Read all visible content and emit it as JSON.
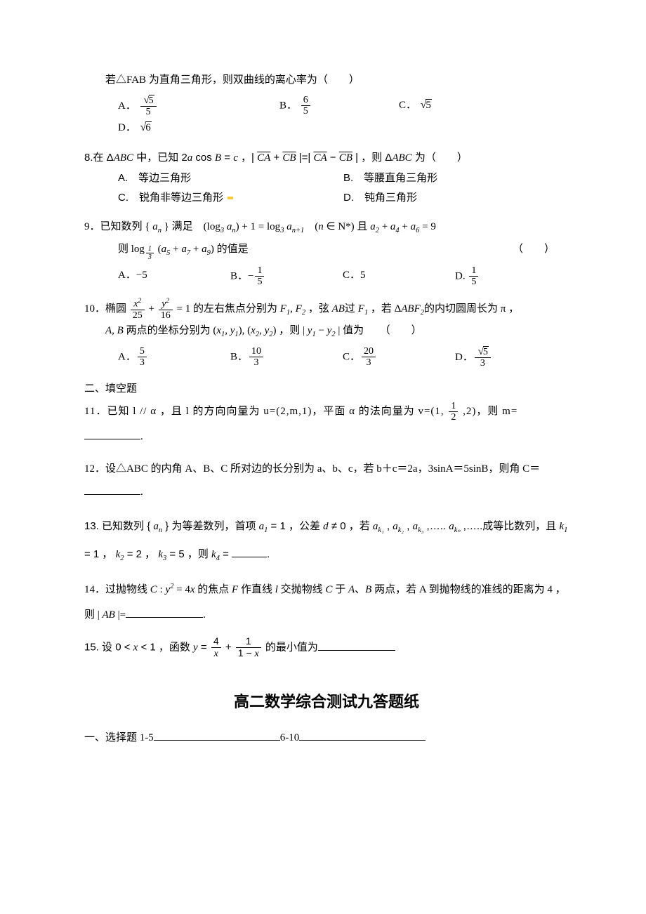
{
  "q7": {
    "stem_indent": "若△FAB 为直角三角形，则双曲线的离心率为（　　）",
    "opts": {
      "A_label": "A．",
      "A_num": "√5",
      "A_num_raw_num": "5",
      "A_is_sqrt_over": true,
      "A_den": "5",
      "B_label": "B．",
      "B_num": "6",
      "B_den": "5",
      "C_label": "C．",
      "C_val_sqrt": "5",
      "D_label": "D．",
      "D_val_sqrt": "6"
    }
  },
  "q8": {
    "num": "8.",
    "stem_a": "在 Δ",
    "stem_tri": "ABC",
    "stem_b": " 中，已知 2",
    "stem_c": "a",
    "stem_d": " cos ",
    "stem_e": "B",
    "stem_f": " = ",
    "stem_g": "c",
    "stem_h": " ，| ",
    "vec1a": "CA",
    "vec_plus": " + ",
    "vec1b": "CB",
    "stem_i": " |=| ",
    "vec2a": "CA",
    "vec_minus": " − ",
    "vec2b": "CB",
    "stem_j": " | ，则 Δ",
    "stem_tri2": "ABC",
    "stem_k": " 为（　　）",
    "optA": "A.　等边三角形",
    "optB": "B.　等腰直角三角形",
    "optC": "C.　锐角非等边三角形",
    "optD": "D.　钝角三角形"
  },
  "q9": {
    "num": "9．",
    "stem_a": "已知数列 { ",
    "an": "a",
    "an_sub": "n",
    "stem_b": " } 满足　(log",
    "log_base": "3",
    "stem_c": " a",
    "stem_c_sub": "n",
    "stem_d": ") + 1 = log",
    "stem_e": " a",
    "stem_e_sub": "n+1",
    "stem_f": "　(",
    "nin": "n",
    "stem_g": " ∈ N*) 且 ",
    "a2": "a",
    "a2s": "2",
    "plus1": " + ",
    "a4": "a",
    "a4s": "4",
    "plus2": " + ",
    "a6": "a",
    "a6s": "6",
    "eq": " = 9",
    "line2_a": "则 log",
    "line2_base_num": "1",
    "line2_base_den": "3",
    "line2_b": " (",
    "a5": "a",
    "a5s": "5",
    "p1": " + ",
    "a7": "a",
    "a7s": "7",
    "p2": " + ",
    "a9": "a",
    "a9s": "9",
    "line2_c": ") ",
    "line2_d": "的值是",
    "paren": "（　　）",
    "opts": {
      "A": "A．−5",
      "B_pre": "B．−",
      "B_num": "1",
      "B_den": "5",
      "C": "C．5",
      "D_pre": "D. ",
      "D_num": "1",
      "D_den": "5"
    }
  },
  "q10": {
    "num": "10．",
    "stem_a": "椭圆 ",
    "fr1n": "x",
    "fr1ns": "2",
    "fr1d": "25",
    "plus": " + ",
    "fr2n": "y",
    "fr2ns": "2",
    "fr2d": "16",
    "eq": " = 1",
    "stem_b": " 的左右焦点分别为 ",
    "F1": "F",
    "F1s": "1",
    "comma": ", ",
    "F2": "F",
    "F2s": "2",
    "stem_c": " ，弦 ",
    "AB": "AB",
    "stem_d": "过 ",
    "F1b": "F",
    "F1bs": "1",
    "stem_e": " ，若 Δ",
    "ABF2": "ABF",
    "ABF2s": "2",
    "stem_f": "的内切圆周长为 π ，",
    "line2_a": "A, B",
    "line2_b": " 两点的坐标分别为 (",
    "x1": "x",
    "x1s": "1",
    "y1": "y",
    "y1s": "1",
    "line2_c": "), (",
    "x2": "x",
    "x2s": "2",
    "y2": "y",
    "y2s": "2",
    "line2_d": ") ，则 | ",
    "yy1": "y",
    "yy1s": "1",
    "minus": " − ",
    "yy2": "y",
    "yy2s": "2",
    "line2_e": " | 值为　　（　　）",
    "opts": {
      "A_pre": "A．",
      "A_num": "5",
      "A_den": "3",
      "B_pre": "B．",
      "B_num": "10",
      "B_den": "3",
      "C_pre": "C．",
      "C_num": "20",
      "C_den": "3",
      "D_pre": "D．",
      "D_num_sqrt": "5",
      "D_den": "3"
    }
  },
  "section2": "二、填空题",
  "q11": {
    "num": "11．",
    "text_a": "已知 l // α ，且 l 的方向向量为 u=(2,m,1)，平面 α 的法向量为 v=(1, ",
    "half_num": "1",
    "half_den": "2",
    "text_b": " ,2)，则 m=",
    "tail": "."
  },
  "q12": {
    "num": "12．",
    "text": "设△ABC 的内角 A、B、C 所对边的长分别为 a、b、c，若 b＋c＝2a，3sinA＝5sinB，则角 C＝",
    "tail": "."
  },
  "q13": {
    "num": "13.",
    "text_a": " 已知数列 { ",
    "an": "a",
    "ans": "n",
    "text_b": " } 为等差数列，首项 ",
    "a1": "a",
    "a1s": "1",
    "eq1": " = 1 ，公差 ",
    "d": "d",
    "neq": " ≠ 0 ，若 ",
    "ak1": "a",
    "ak1s": "k₁",
    "c1": " , ",
    "ak2": "a",
    "ak2s": "k₂",
    "c2": " , ",
    "ak3": "a",
    "ak3s": "k₃",
    "c3": " ,….. ",
    "akn": "a",
    "akns": "kₙ",
    "c4": " ,…..",
    "text_c": "成等比数列，且 ",
    "k1": "k",
    "k1s": "1",
    "k1v": " = 1 ， ",
    "k2": "k",
    "k2s": "2",
    "k2v": " = 2 ， ",
    "k3": "k",
    "k3s": "3",
    "k3v": " = 5 ，则 ",
    "k4": "k",
    "k4s": "4",
    "k4v": " = ",
    "tail": "."
  },
  "q14": {
    "num": "14．",
    "text_a": "过抛物线 ",
    "C": "C",
    "colon": " : ",
    "y": "y",
    "sq": "2",
    "eq": " = 4",
    "x": "x",
    "text_b": " 的焦点 ",
    "F": "F",
    "text_c": " 作直线 ",
    "l": "l",
    "text_d": " 交抛物线 ",
    "C2": "C",
    "text_e": " 于 ",
    "A": "A",
    "text_f": "、",
    "B": "B",
    "text_g": " 两点，若 A 到抛物线的准线的距离为 4 ，则 | ",
    "AB": "AB",
    "text_h": " |=",
    "tail": "."
  },
  "q15": {
    "num": "15.",
    "text_a": " 设 0 < ",
    "x1": "x",
    "text_b": " < 1 ，函数 ",
    "y": "y",
    "eq": " = ",
    "f1n": "4",
    "f1d": "x",
    "plus": " + ",
    "f2n": "1",
    "f2d_a": "1 − ",
    "f2d_b": "x",
    "text_c": " 的最小值为"
  },
  "title": "高二数学综合测试九答题纸",
  "answer": {
    "sec": "一、选择题 1-5",
    "mid": "6-10"
  }
}
